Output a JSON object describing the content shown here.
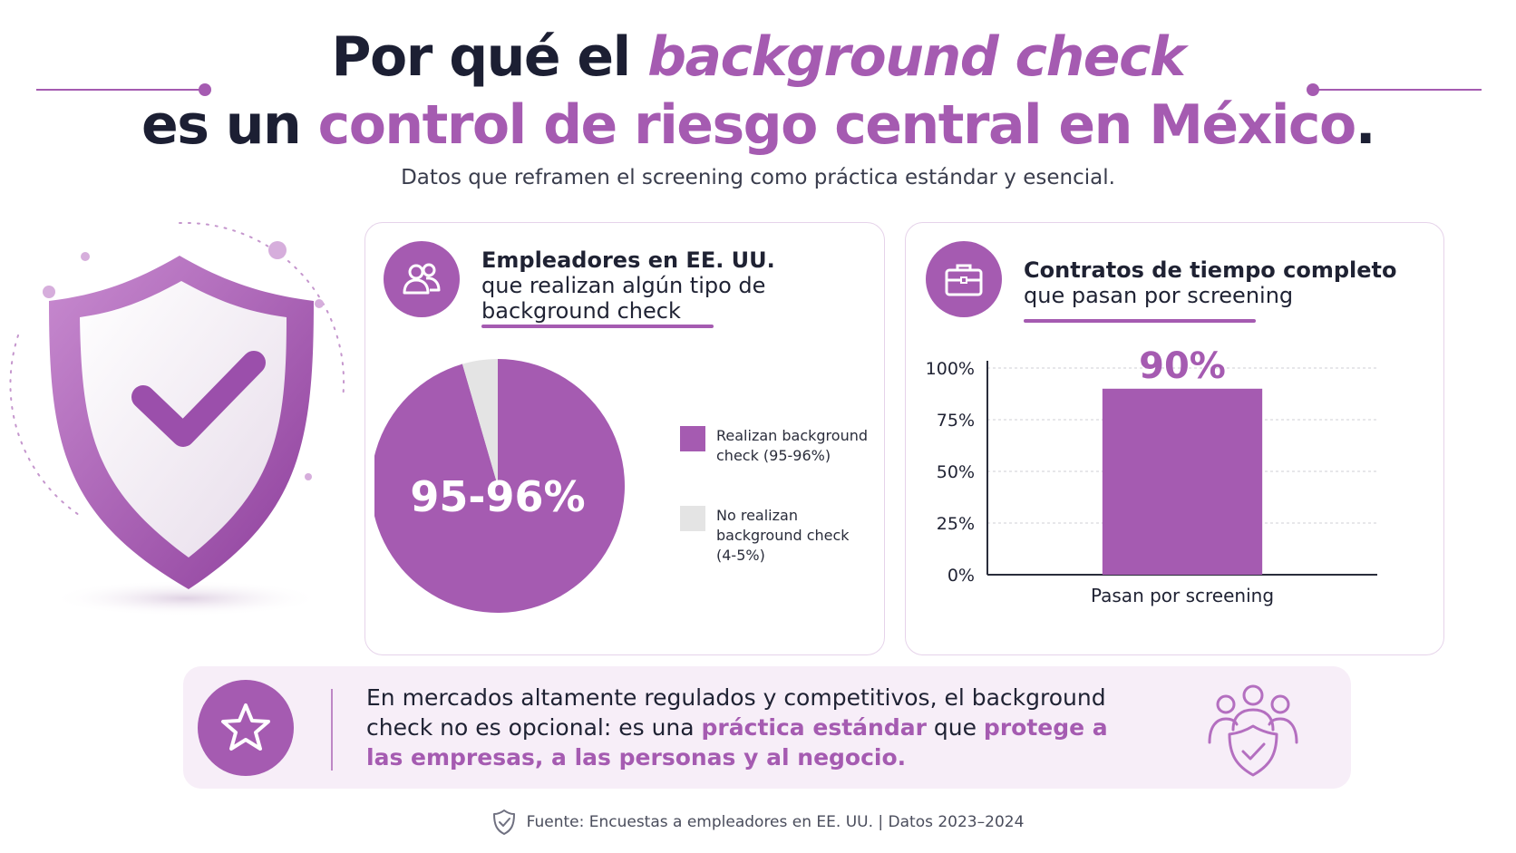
{
  "header": {
    "title_line1_plain": "Por qué el ",
    "title_line1_accent": "background check",
    "title_line2_plain": "es un ",
    "title_line2_accent": "control de riesgo central en México",
    "title_line2_end": ".",
    "subtitle": "Datos que reframen el screening como práctica estándar y esencial."
  },
  "colors": {
    "accent": "#a55bb1",
    "pie_other": "#e4e4e4",
    "dark_text": "#1c1f33"
  },
  "card1": {
    "icon": "people-icon",
    "heading_bold": "Empleadores en EE. UU.",
    "heading_rest_1": "que realizan algún tipo de",
    "heading_rest_2": "background check",
    "center_label": "95-96%"
  },
  "card2": {
    "icon": "briefcase-icon",
    "heading_bold": "Contratos de tiempo completo",
    "heading_rest": "que pasan por screening",
    "bar_value_label": "90%"
  },
  "chart_data": [
    {
      "type": "pie",
      "title": "Empleadores en EE. UU. que realizan algún tipo de background check",
      "slices": [
        {
          "label": "Realizan background check (95-96%)",
          "value": 95.5,
          "color": "#a55bb1"
        },
        {
          "label": "No realizan background check (4-5%)",
          "value": 4.5,
          "color": "#e4e4e4"
        }
      ],
      "data_label": "95-96%",
      "legend": "right"
    },
    {
      "type": "bar",
      "title": "Contratos de tiempo completo que pasan por screening",
      "categories": [
        "Pasan por screening"
      ],
      "values": [
        90
      ],
      "ylim": [
        0,
        100
      ],
      "yticks": [
        "0%",
        "25%",
        "50%",
        "75%",
        "100%"
      ],
      "ytick_values": [
        0,
        25,
        50,
        75,
        100
      ],
      "data_label": "90%",
      "grid": true,
      "color": "#a55bb1"
    }
  ],
  "callout": {
    "icon": "star-icon",
    "text_1": "En mercados altamente regulados y competitivos, el background check no es opcional: es una ",
    "hl_1": "práctica estándar",
    "text_2": " que ",
    "hl_2": "protege a las empresas, a las personas y al negocio.",
    "side_icon": "people-shield-icon"
  },
  "footer": {
    "icon": "shield-check-icon",
    "text": "Fuente: Encuestas a empleadores en EE. UU. | Datos 2023–2024"
  }
}
